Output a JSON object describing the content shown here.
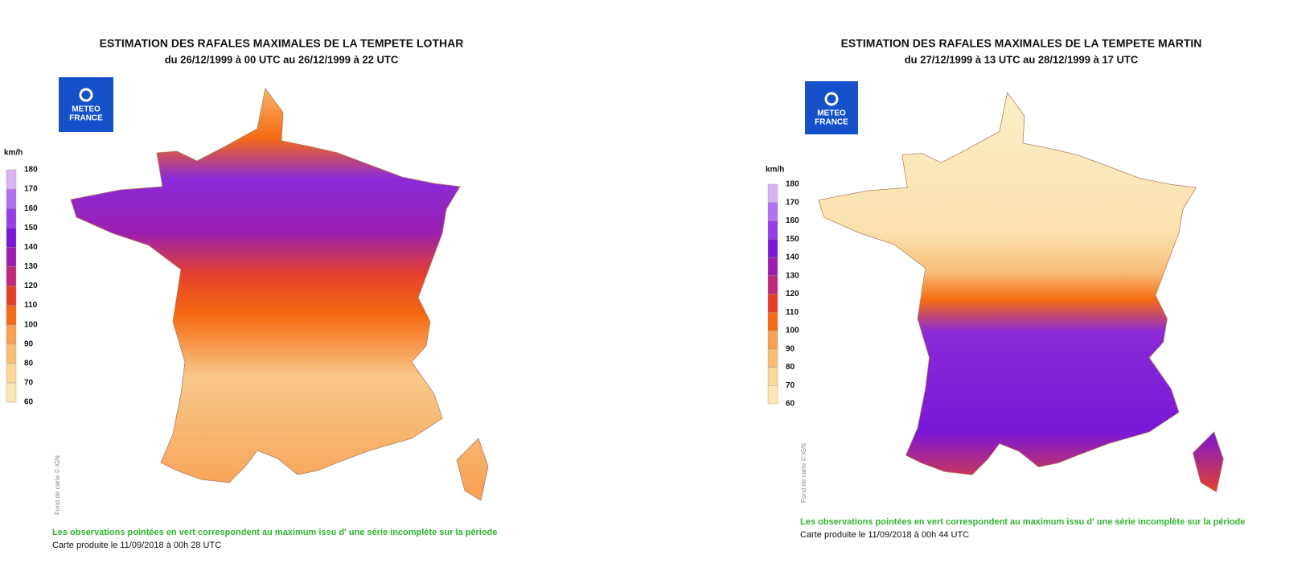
{
  "maps": [
    {
      "title": "ESTIMATION DES RAFALES MAXIMALES DE LA TEMPETE LOTHAR",
      "subtitle": "du 26/12/1999 à 00 UTC au 26/12/1999 à 22 UTC",
      "logo": [
        "METEO",
        "FRANCE"
      ],
      "legend": {
        "unit": "km/h",
        "ticks": [
          60,
          70,
          80,
          90,
          100,
          110,
          120,
          130,
          140,
          150,
          160,
          170,
          180
        ],
        "colors": [
          "#fbe7b4",
          "#fbd79a",
          "#f9bd78",
          "#f7a052",
          "#f56a12",
          "#e5402c",
          "#c0287a",
          "#9a1fb0",
          "#7a17d8",
          "#9a3ee8",
          "#b56ff0",
          "#d8b3f7"
        ]
      },
      "credit": "Fond de carte © IGN",
      "note": "Les observations pointées en vert correspondent au maximum issu d' une série incomplète sur la période",
      "produced": "Carte produite le 11/09/2018 à 00h 28 UTC"
    },
    {
      "title": "ESTIMATION DES RAFALES MAXIMALES DE LA TEMPETE MARTIN",
      "subtitle": "du 27/12/1999 à 13 UTC au 28/12/1999 à 17 UTC",
      "logo": [
        "METEO",
        "FRANCE"
      ],
      "legend": {
        "unit": "km/h",
        "ticks": [
          60,
          70,
          80,
          90,
          100,
          110,
          120,
          130,
          140,
          150,
          160,
          170,
          180
        ],
        "colors": [
          "#fbe7b4",
          "#fbd79a",
          "#f9bd78",
          "#f7a052",
          "#f56a12",
          "#e5402c",
          "#c0287a",
          "#9a1fb0",
          "#7a17d8",
          "#9a3ee8",
          "#b56ff0",
          "#d8b3f7"
        ]
      },
      "credit": "Fond de carte © IGN",
      "note": "Les observations pointées en vert correspondent au maximum issu d' une série incomplète sur la période",
      "produced": "Carte produite le 11/09/2018 à 00h 44 UTC"
    }
  ]
}
